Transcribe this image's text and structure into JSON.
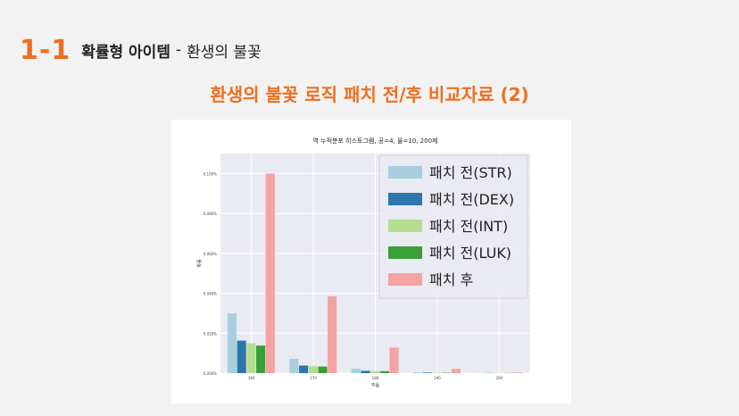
{
  "slide": {
    "number": "1-1",
    "title": "확률형 아이템",
    "separator": "-",
    "subtitle": "환생의 불꽃",
    "heading": "환생의 불꽃 로직 패치 전/후 비교자료 (2)"
  },
  "colors": {
    "accent": "#ee6f1e",
    "series": [
      "#a7cfe0",
      "#2b77ad",
      "#b4dd8f",
      "#3a9f38",
      "#f2a3a2"
    ]
  },
  "chart_data": {
    "type": "bar",
    "title": "역 누적분포 히스토그램, 공=4, 올=10, 200제",
    "xlabel": "추옵",
    "ylabel": "확률",
    "categories": [
      "160",
      "170",
      "180",
      "190",
      "200"
    ],
    "ylim": [
      0,
      0.11
    ],
    "y_ticks": [
      0,
      0.02,
      0.04,
      0.06,
      0.08,
      0.1
    ],
    "y_tick_labels": [
      "0.000%",
      "0.020%",
      "0.040%",
      "0.060%",
      "0.080%",
      "0.100%"
    ],
    "grid": true,
    "legend_position": "top-right",
    "series": [
      {
        "name": "패치 전(STR)",
        "values": [
          0.03,
          0.0072,
          0.0022,
          0.0004,
          0.0001
        ]
      },
      {
        "name": "패치 전(DEX)",
        "values": [
          0.0163,
          0.0038,
          0.0012,
          0.0003,
          0.0001
        ]
      },
      {
        "name": "패치 전(INT)",
        "values": [
          0.015,
          0.0035,
          0.001,
          0.0002,
          0.0001
        ]
      },
      {
        "name": "패치 전(LUK)",
        "values": [
          0.0138,
          0.0033,
          0.001,
          0.0002,
          0.0001
        ]
      },
      {
        "name": "패치 후",
        "values": [
          0.1,
          0.0385,
          0.0128,
          0.0021,
          0.0003
        ]
      }
    ]
  }
}
